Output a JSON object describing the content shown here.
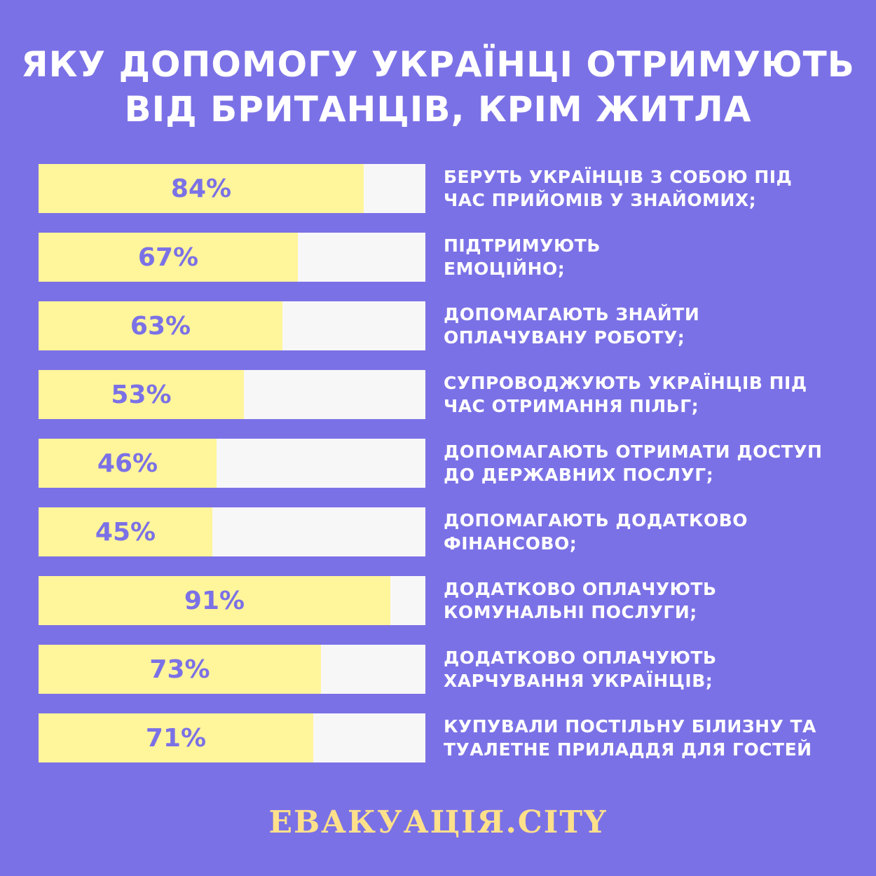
{
  "title": {
    "line1": "ЯКУ ДОПОМОГУ УКРАЇНЦІ ОТРИМУЮТЬ",
    "line2": "ВІД БРИТАНЦІВ, КРІМ ЖИТЛА"
  },
  "footer": "ЕВАКУАЦІЯ.CITY",
  "colors": {
    "background": "#7b71e6",
    "bar_fill": "#fff59a",
    "bar_track": "#f8f7f8",
    "value_text": "#7b71e6",
    "footer_text": "#ffe08a"
  },
  "chart_data": {
    "type": "bar",
    "orientation": "horizontal",
    "xlim": [
      0,
      100
    ],
    "unit": "%",
    "grid": false,
    "legend": "none",
    "bars": [
      {
        "value": 84,
        "value_label": "84%",
        "label_lines": [
          "БЕРУТЬ УКРАЇНЦІВ З СОБОЮ ПІД",
          "ЧАС ПРИЙОМІВ У ЗНАЙОМИХ;"
        ]
      },
      {
        "value": 67,
        "value_label": "67%",
        "label_lines": [
          "ПІДТРИМУЮТЬ",
          "ЕМОЦІЙНО;"
        ]
      },
      {
        "value": 63,
        "value_label": "63%",
        "label_lines": [
          "ДОПОМАГАЮТЬ ЗНАЙТИ",
          "ОПЛАЧУВАНУ РОБОТУ;"
        ]
      },
      {
        "value": 53,
        "value_label": "53%",
        "label_lines": [
          "СУПРОВОДЖУЮТЬ УКРАЇНЦІВ ПІД",
          "ЧАС ОТРИМАННЯ ПІЛЬГ;"
        ]
      },
      {
        "value": 46,
        "value_label": "46%",
        "label_lines": [
          "ДОПОМАГАЮТЬ ОТРИМАТИ ДОСТУП",
          "ДО ДЕРЖАВНИХ ПОСЛУГ;"
        ]
      },
      {
        "value": 45,
        "value_label": "45%",
        "label_lines": [
          "ДОПОМАГАЮТЬ ДОДАТКОВО",
          "ФІНАНСОВО;"
        ]
      },
      {
        "value": 91,
        "value_label": "91%",
        "label_lines": [
          "ДОДАТКОВО ОПЛАЧУЮТЬ",
          "КОМУНАЛЬНІ ПОСЛУГИ;"
        ]
      },
      {
        "value": 73,
        "value_label": "73%",
        "label_lines": [
          "ДОДАТКОВО ОПЛАЧУЮТЬ",
          "ХАРЧУВАННЯ УКРАЇНЦІВ;"
        ]
      },
      {
        "value": 71,
        "value_label": "71%",
        "label_lines": [
          "КУПУВАЛИ ПОСТІЛЬНУ БІЛИЗНУ ТА",
          "ТУАЛЕТНЕ ПРИЛАДДЯ ДЛЯ ГОСТЕЙ"
        ]
      }
    ]
  }
}
